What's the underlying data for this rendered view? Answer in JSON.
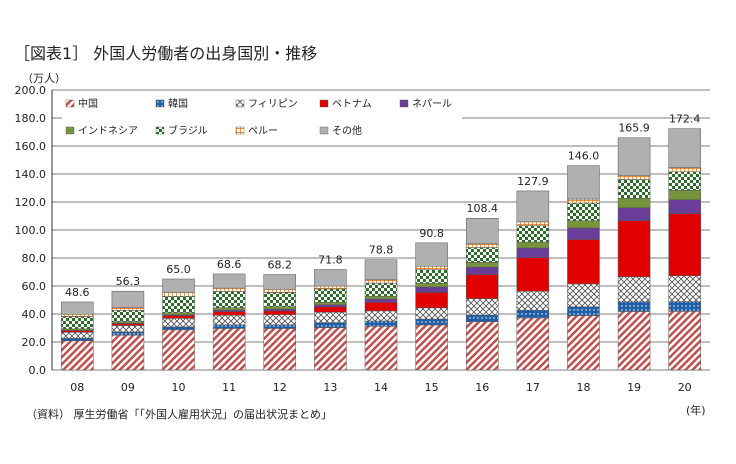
{
  "title": "［図表1］ 外国人労働者の出身国別・推移",
  "unit_label": "（万人）",
  "x_unit_label": "(年)",
  "source": "（資料） 厚生労働省「「外国人雇用状況」の届出状況まとめ」",
  "chart_data": {
    "type": "bar",
    "stacked": true,
    "categories": [
      "08",
      "09",
      "10",
      "11",
      "12",
      "13",
      "14",
      "15",
      "16",
      "17",
      "18",
      "19",
      "20"
    ],
    "totals": [
      48.6,
      56.3,
      65.0,
      68.6,
      68.2,
      71.8,
      78.8,
      90.8,
      108.4,
      127.9,
      146.0,
      165.9,
      172.4
    ],
    "ylim": [
      0,
      200
    ],
    "yticks": [
      "0.0",
      "20.0",
      "40.0",
      "60.0",
      "80.0",
      "100.0",
      "120.0",
      "140.0",
      "160.0",
      "180.0",
      "200.0"
    ],
    "grid": true,
    "legend_position": "top-left",
    "series": [
      {
        "name": "中国",
        "color": "#c0504d",
        "pattern": "diagonal-stripe",
        "values": [
          21.0,
          24.9,
          28.7,
          29.7,
          29.7,
          30.3,
          31.2,
          32.2,
          34.5,
          37.2,
          38.9,
          41.8,
          41.9
        ]
      },
      {
        "name": "韓国",
        "color": "#1f5fa8",
        "pattern": "dots",
        "values": [
          1.7,
          2.3,
          2.1,
          2.6,
          2.6,
          3.5,
          3.8,
          4.2,
          4.8,
          5.5,
          6.3,
          6.9,
          6.9
        ]
      },
      {
        "name": "フィリピン",
        "color": "#8064a2",
        "pattern": "cross",
        "values": [
          4.2,
          4.6,
          6.1,
          6.8,
          7.3,
          7.5,
          7.2,
          8.0,
          11.7,
          13.6,
          16.3,
          17.9,
          18.5
        ]
      },
      {
        "name": "ベトナム",
        "color": "#e00000",
        "pattern": "solid",
        "values": [
          1.3,
          1.3,
          2.0,
          2.5,
          2.6,
          3.8,
          6.1,
          11.0,
          17.2,
          24.0,
          31.7,
          40.1,
          44.4
        ]
      },
      {
        "name": "ネパール",
        "color": "#6a3d9a",
        "pattern": "solid",
        "values": [
          0.2,
          0.3,
          0.5,
          1.2,
          1.3,
          1.5,
          2.4,
          3.9,
          5.3,
          6.9,
          8.2,
          9.2,
          9.9
        ]
      },
      {
        "name": "インドネシア",
        "color": "#77933c",
        "pattern": "solid",
        "values": [
          1.0,
          1.2,
          1.6,
          1.7,
          1.7,
          1.8,
          2.0,
          2.7,
          3.4,
          4.2,
          5.2,
          6.7,
          6.8
        ]
      },
      {
        "name": "ブラジル",
        "color": "#777777",
        "pattern": "check",
        "values": [
          8.8,
          8.0,
          11.6,
          11.6,
          10.2,
          9.5,
          9.4,
          9.6,
          10.6,
          11.7,
          12.7,
          13.5,
          13.2
        ]
      },
      {
        "name": "ペルー",
        "color": "#e46c0a",
        "pattern": "grid",
        "values": [
          1.6,
          2.1,
          2.6,
          2.4,
          2.2,
          2.1,
          2.3,
          2.5,
          2.6,
          2.7,
          2.8,
          2.9,
          2.9
        ]
      },
      {
        "name": "その他",
        "color": "#b0b0b0",
        "pattern": "solid",
        "values": [
          8.8,
          11.6,
          9.8,
          10.1,
          10.6,
          11.8,
          14.4,
          16.7,
          18.3,
          22.1,
          23.9,
          26.9,
          27.9
        ]
      }
    ]
  }
}
